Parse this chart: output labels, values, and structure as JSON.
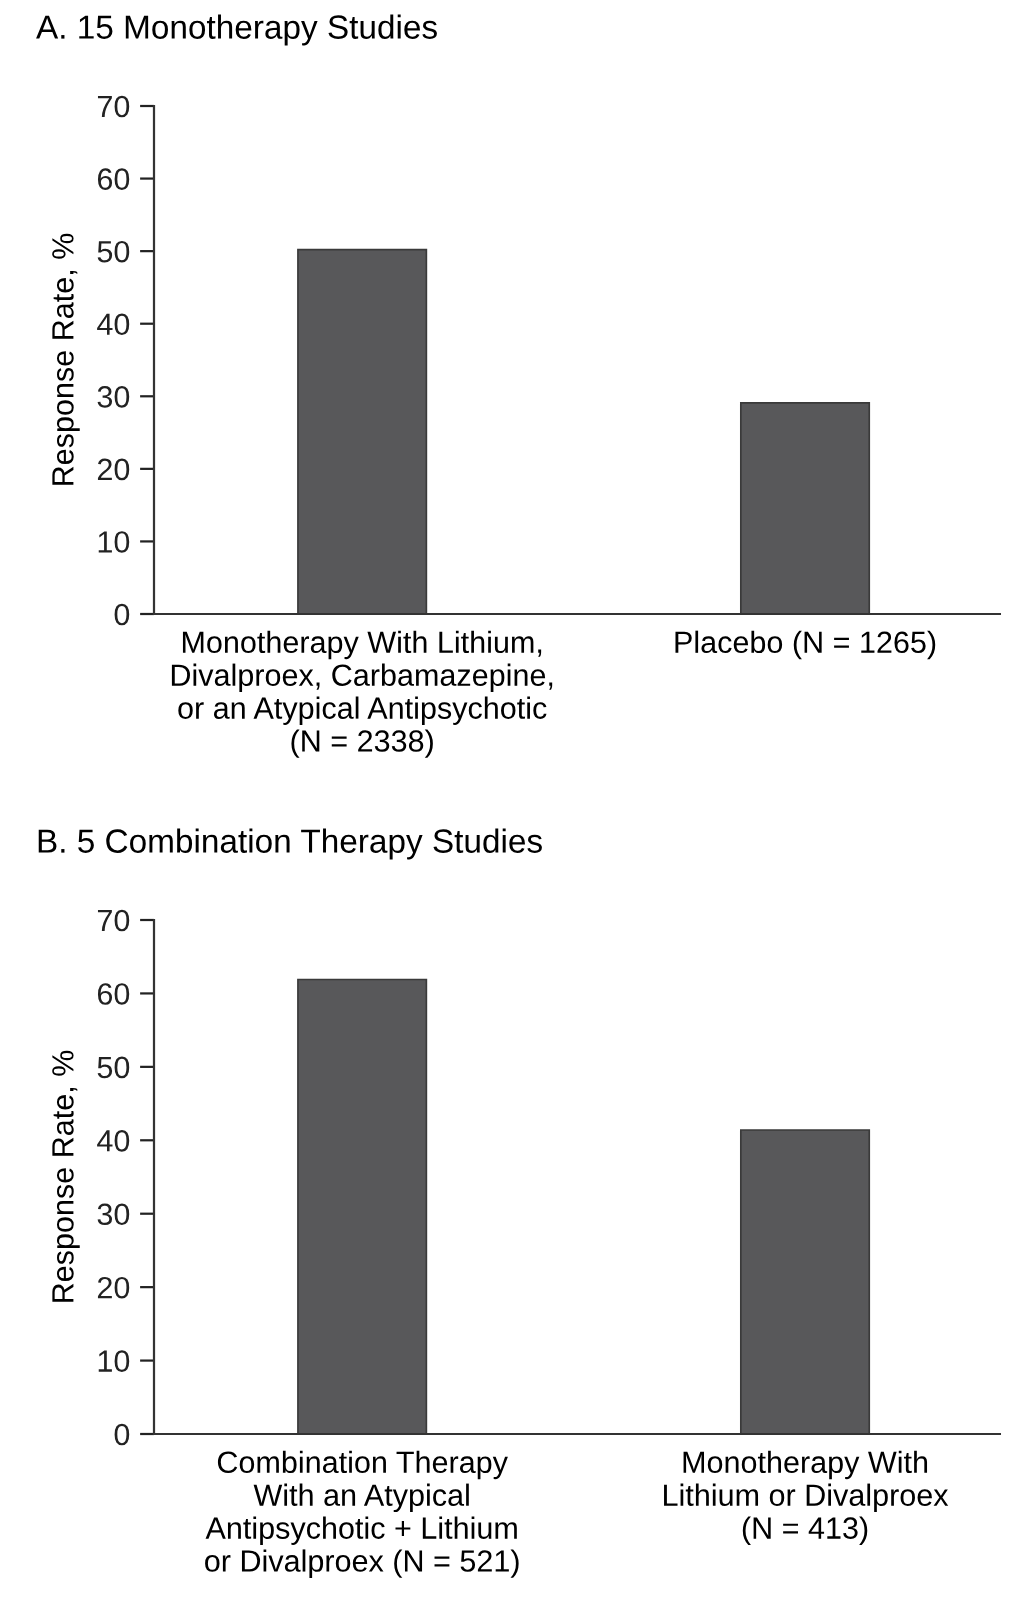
{
  "chart_data": [
    {
      "type": "bar",
      "title": "A. 15 Monotherapy Studies",
      "ylabel": "Response Rate, %",
      "categories": [
        "Monotherapy With Lithium,\nDivalproex, Carbamazepine,\nor an Atypical Antipsychotic\n(N = 2338)",
        "Placebo (N = 1265)"
      ],
      "values": [
        50.2,
        29.1
      ],
      "color": "#58585a",
      "ylim": [
        0,
        70
      ],
      "yticks": [
        0,
        10,
        20,
        30,
        40,
        50,
        60,
        70
      ],
      "grid": false,
      "legend": false
    },
    {
      "type": "bar",
      "title": "B. 5 Combination Therapy Studies",
      "ylabel": "Response Rate, %",
      "categories": [
        "Combination Therapy\nWith an Atypical\nAntipsychotic + Lithium\nor Divalproex (N = 521)",
        "Monotherapy With\nLithium or Divalproex\n(N = 413)"
      ],
      "values": [
        61.9,
        41.4
      ],
      "color": "#58585a",
      "ylim": [
        0,
        70
      ],
      "yticks": [
        0,
        10,
        20,
        30,
        40,
        50,
        60,
        70
      ],
      "grid": false,
      "legend": false
    }
  ]
}
